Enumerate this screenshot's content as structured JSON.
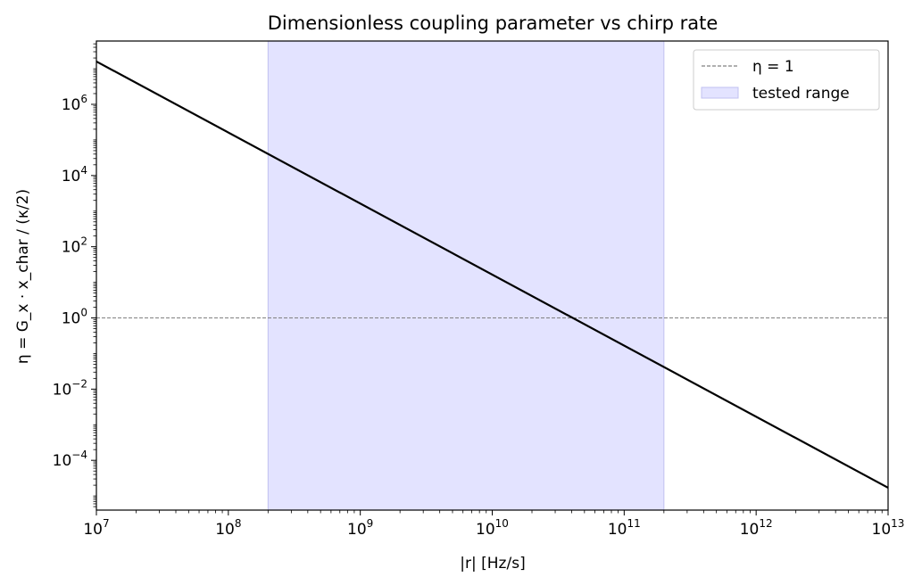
{
  "chart_data": {
    "type": "line",
    "title": "Dimensionless coupling parameter vs chirp rate",
    "xlabel": "|r| [Hz/s]",
    "ylabel": "η = G_x · x_char / (κ/2)",
    "xscale": "log",
    "yscale": "log",
    "xlim": [
      10000000.0,
      10000000000000.0
    ],
    "ylim": [
      4e-06,
      60000000.0
    ],
    "grid": false,
    "legend_position": "top-right",
    "x_ticks": [
      {
        "value": 10000000.0,
        "base": "10",
        "exp": "7"
      },
      {
        "value": 100000000.0,
        "base": "10",
        "exp": "8"
      },
      {
        "value": 1000000000.0,
        "base": "10",
        "exp": "9"
      },
      {
        "value": 10000000000.0,
        "base": "10",
        "exp": "10"
      },
      {
        "value": 100000000000.0,
        "base": "10",
        "exp": "11"
      },
      {
        "value": 1000000000000.0,
        "base": "10",
        "exp": "12"
      },
      {
        "value": 10000000000000.0,
        "base": "10",
        "exp": "13"
      }
    ],
    "y_ticks": [
      {
        "value": 0.0001,
        "base": "10",
        "exp": "−4"
      },
      {
        "value": 0.01,
        "base": "10",
        "exp": "−2"
      },
      {
        "value": 1.0,
        "base": "10",
        "exp": "0"
      },
      {
        "value": 100.0,
        "base": "10",
        "exp": "2"
      },
      {
        "value": 10000.0,
        "base": "10",
        "exp": "4"
      },
      {
        "value": 1000000.0,
        "base": "10",
        "exp": "6"
      }
    ],
    "series": [
      {
        "name": "",
        "color": "#000000",
        "x": [
          10000000.0,
          10000000000000.0
        ],
        "y": [
          16000000.0,
          1.7e-05
        ]
      }
    ],
    "reference_line": {
      "label": "η = 1",
      "y": 1,
      "color": "#808080",
      "style": "dashed"
    },
    "shaded_region": {
      "label": "tested range",
      "x": [
        200000000.0,
        200000000000.0
      ],
      "color": "#e3e3ff",
      "edge_color": "#c0c0f0"
    },
    "legend": [
      {
        "label": "η = 1",
        "kind": "dashed-line",
        "color": "#808080"
      },
      {
        "label": "tested range",
        "kind": "patch",
        "color": "#e3e3ff"
      }
    ]
  }
}
